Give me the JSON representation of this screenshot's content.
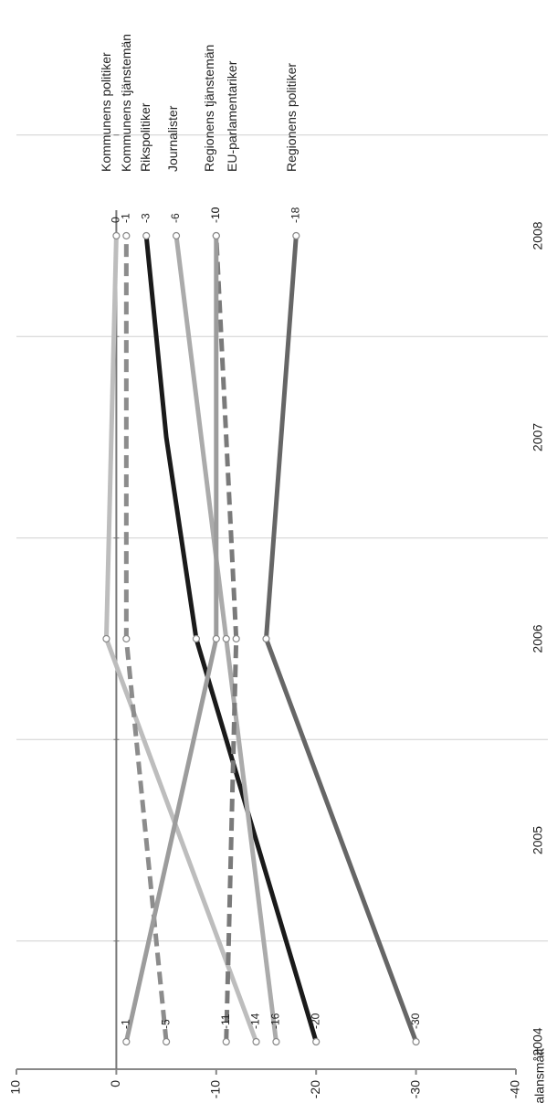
{
  "chart_data": {
    "type": "line",
    "y_label": "Balansmått",
    "categories": [
      "2004",
      "2005",
      "2006",
      "2007",
      "2008"
    ],
    "ylim": [
      -40,
      10
    ],
    "yticks": [
      10,
      0,
      -10,
      -20,
      -30,
      -40
    ],
    "series": [
      {
        "name": "Kommunens politiker",
        "color": "#bdbdbd",
        "dash": false,
        "values": [
          -14,
          -6.5,
          1,
          0.5,
          0
        ]
      },
      {
        "name": "Kommunens tjänstemän",
        "color": "#8c8c8c",
        "dash": true,
        "values": [
          -5,
          -3,
          -1,
          -1,
          -1
        ]
      },
      {
        "name": "Rikspolitiker",
        "color": "#1a1a1a",
        "dash": false,
        "values": [
          -20,
          -14,
          -8,
          -5,
          -3
        ]
      },
      {
        "name": "Journalister",
        "color": "#ababab",
        "dash": false,
        "values": [
          -16,
          -13.5,
          -11,
          -8.5,
          -6
        ]
      },
      {
        "name": "Regionens tjänstemän",
        "color": "#7a7a7a",
        "dash": true,
        "values": [
          -11,
          -11.5,
          -12,
          -11,
          -10
        ]
      },
      {
        "name": "EU-parlamentariker",
        "color": "#9c9c9c",
        "dash": false,
        "values": [
          -1,
          -5.5,
          -10,
          -10,
          -10
        ]
      },
      {
        "name": "Regionens politiker",
        "color": "#666666",
        "dash": false,
        "values": [
          -30,
          -22.5,
          -15,
          -16.5,
          -18
        ]
      }
    ]
  }
}
